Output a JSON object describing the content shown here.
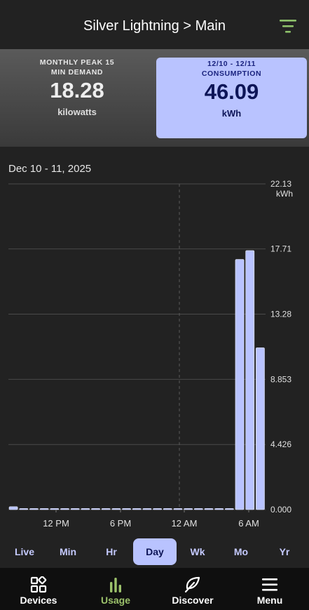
{
  "header": {
    "title": "Silver Lightning > Main",
    "filter_icon": "filter-lines-icon"
  },
  "summary": {
    "peak": {
      "label": "MONTHLY PEAK 15 MIN DEMAND",
      "label_line1": "MONTHLY PEAK 15",
      "label_line2": "MIN DEMAND",
      "value": "18.28",
      "unit": "kilowatts"
    },
    "consumption": {
      "label_line1": "12/10 - 12/11",
      "label_line2": "CONSUMPTION",
      "value": "46.09",
      "unit": "kWh"
    }
  },
  "chart": {
    "date_range": "Dec 10 - 11, 2025",
    "y_unit": "kWh",
    "y_ticks": [
      "0.000",
      "4.426",
      "8.853",
      "13.28",
      "17.71",
      "22.13"
    ],
    "x_ticks": [
      "12 PM",
      "6 PM",
      "12 AM",
      "6 AM"
    ]
  },
  "chart_data": {
    "type": "bar",
    "title": "",
    "xlabel": "",
    "ylabel": "kWh",
    "ylim": [
      0,
      22.13
    ],
    "x_ticks": [
      "12 PM",
      "6 PM",
      "12 AM",
      "6 AM"
    ],
    "values": [
      0.2,
      0.05,
      0.05,
      0.05,
      0.05,
      0.05,
      0.05,
      0.05,
      0.05,
      0.05,
      0.05,
      0.05,
      0.05,
      0.05,
      0.05,
      0.05,
      0.05,
      0.05,
      0.05,
      0.05,
      0.05,
      0.05,
      17.0,
      17.6,
      11.0
    ],
    "bar_color": "#b9c3ff",
    "grid": true
  },
  "periods": {
    "items": [
      "Live",
      "Min",
      "Hr",
      "Day",
      "Wk",
      "Mo",
      "Yr"
    ],
    "active": "Day"
  },
  "nav": {
    "items": [
      {
        "label": "Devices",
        "icon": "devices-grid-icon"
      },
      {
        "label": "Usage",
        "icon": "usage-bars-icon"
      },
      {
        "label": "Discover",
        "icon": "leaf-icon"
      },
      {
        "label": "Menu",
        "icon": "hamburger-menu-icon"
      }
    ],
    "active": "Usage",
    "active_color": "#9cc26b"
  }
}
